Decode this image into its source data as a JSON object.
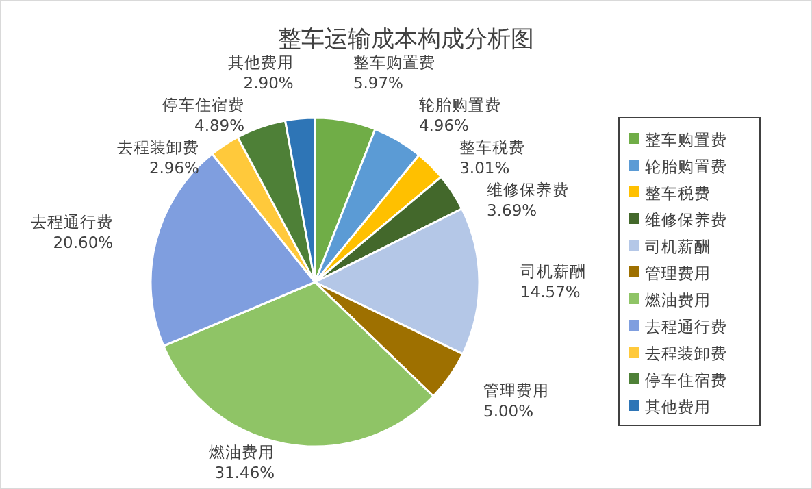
{
  "chart_data": {
    "type": "pie",
    "title": "整车运输成本构成分析图",
    "categories": [
      "整车购置费",
      "轮胎购置费",
      "整车税费",
      "维修保养费",
      "司机薪酬",
      "管理费用",
      "燃油费用",
      "去程通行费",
      "去程装卸费",
      "停车住宿费",
      "其他费用"
    ],
    "values": [
      5.97,
      4.96,
      3.01,
      3.69,
      14.57,
      5.0,
      31.46,
      20.6,
      2.96,
      4.89,
      2.9
    ],
    "value_labels": [
      "5.97%",
      "4.96%",
      "3.01%",
      "3.69%",
      "14.57%",
      "5.00%",
      "31.46%",
      "20.60%",
      "2.96%",
      "4.89%",
      "2.90%"
    ],
    "colors": [
      "#70ad47",
      "#5b9bd5",
      "#ffc000",
      "#43682b",
      "#b4c7e7",
      "#9e7000",
      "#8fc466",
      "#7f9edf",
      "#ffc93b",
      "#4e8037",
      "#2e75b6"
    ],
    "legend": "right"
  }
}
